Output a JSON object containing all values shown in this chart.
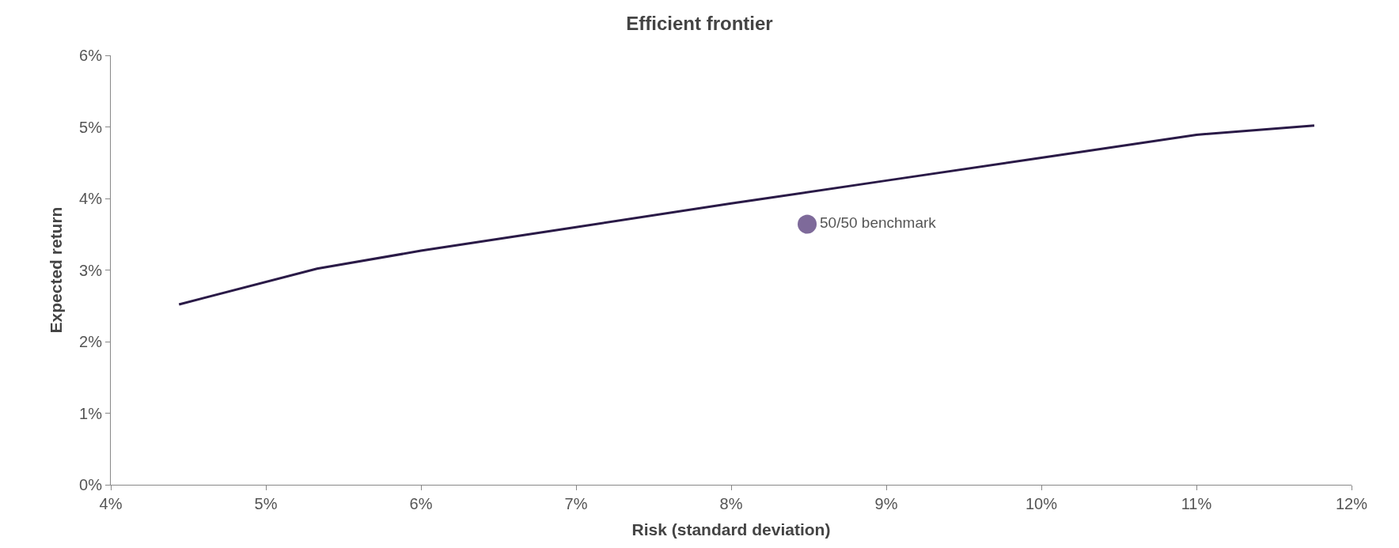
{
  "chart_data": {
    "type": "line",
    "title": "Efficient frontier",
    "xlabel": "Risk (standard deviation)",
    "ylabel": "Expected return",
    "xlim": [
      4,
      12
    ],
    "xticks": [
      {
        "value": 4,
        "label": "4%"
      },
      {
        "value": 5,
        "label": "5%"
      },
      {
        "value": 6,
        "label": "6%"
      },
      {
        "value": 7,
        "label": "7%"
      },
      {
        "value": 8,
        "label": "8%"
      },
      {
        "value": 9,
        "label": "9%"
      },
      {
        "value": 10,
        "label": "10%"
      },
      {
        "value": 11,
        "label": "11%"
      },
      {
        "value": 12,
        "label": "12%"
      }
    ],
    "ylim": [
      0,
      6
    ],
    "yticks": [
      {
        "value": 0,
        "label": "0%"
      },
      {
        "value": 1,
        "label": "1%"
      },
      {
        "value": 2,
        "label": "2%"
      },
      {
        "value": 3,
        "label": "3%"
      },
      {
        "value": 4,
        "label": "4%"
      },
      {
        "value": 5,
        "label": "5%"
      },
      {
        "value": 6,
        "label": "6%"
      }
    ],
    "series": [
      {
        "color": "#2a1a47",
        "marker": "none",
        "x": [
          4.44,
          5.33,
          6,
          7,
          8,
          9,
          10,
          11,
          11.76
        ],
        "values": [
          2.52,
          3.02,
          3.27,
          3.6,
          3.93,
          4.25,
          4.57,
          4.89,
          5.02
        ]
      },
      {
        "type": "scatter",
        "name": "50/50 benchmark",
        "color": "#7e6a9a",
        "marker": "circle",
        "x": [
          8.49
        ],
        "values": [
          3.64
        ]
      }
    ]
  }
}
